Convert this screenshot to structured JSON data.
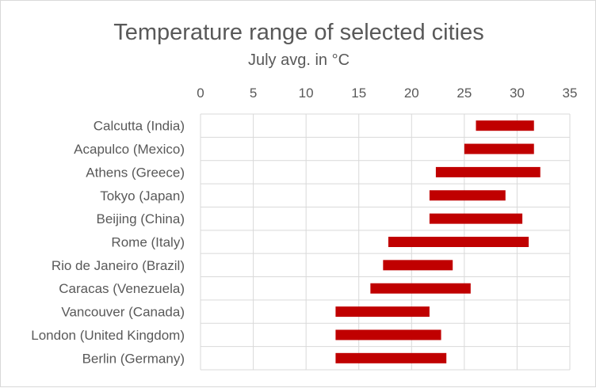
{
  "chart_data": {
    "type": "bar",
    "title": "Temperature range of selected cities",
    "subtitle": "July avg. in °C",
    "xlabel": "",
    "ylabel": "",
    "xlim": [
      0,
      35
    ],
    "x_ticks": [
      "0",
      "5",
      "10",
      "15",
      "20",
      "25",
      "30",
      "35"
    ],
    "x_tick_values": [
      0,
      5,
      10,
      15,
      20,
      25,
      30,
      35
    ],
    "x_axis_position": "top",
    "grid": true,
    "bar_color": "#c00000",
    "categories": [
      "Calcutta (India)",
      "Acapulco (Mexico)",
      "Athens (Greece)",
      "Tokyo (Japan)",
      "Beijing (China)",
      "Rome (Italy)",
      "Rio de Janeiro (Brazil)",
      "Caracas (Venezuela)",
      "Vancouver (Canada)",
      "London (United Kingdom)",
      "Berlin (Germany)"
    ],
    "series": [
      {
        "low": 26.1,
        "high": 31.6
      },
      {
        "low": 25.0,
        "high": 31.6
      },
      {
        "low": 22.3,
        "high": 32.2
      },
      {
        "low": 21.7,
        "high": 28.9
      },
      {
        "low": 21.7,
        "high": 30.5
      },
      {
        "low": 17.8,
        "high": 31.1
      },
      {
        "low": 17.3,
        "high": 23.9
      },
      {
        "low": 16.1,
        "high": 25.6
      },
      {
        "low": 12.8,
        "high": 21.7
      },
      {
        "low": 12.8,
        "high": 22.8
      },
      {
        "low": 12.8,
        "high": 23.3
      }
    ]
  }
}
